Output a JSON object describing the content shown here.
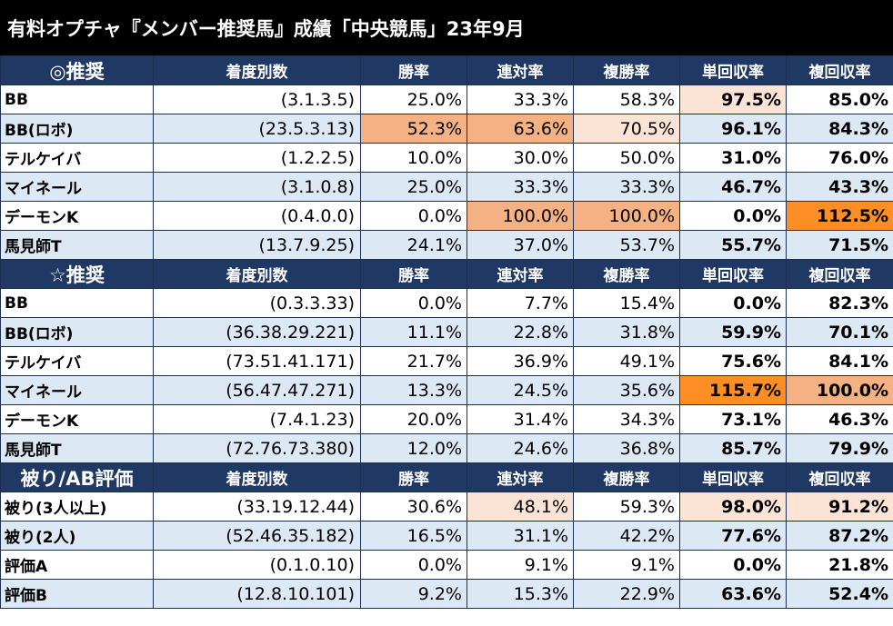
{
  "title": "有料オプチャ『メンバー推奨馬』成績「中央競馬」23年9月",
  "colors": {
    "header_bg": "#1f3964",
    "row_alt_bg": "#dde8f5",
    "highlight_medium": "#f4b183",
    "highlight_light": "#fbe4d6",
    "highlight_strong": "#ff8f24"
  },
  "columns": [
    "着度別数",
    "勝率",
    "連対率",
    "複勝率",
    "単回収率",
    "複回収率"
  ],
  "sections": [
    {
      "label": "◎推奨",
      "rows": [
        {
          "name": "BB",
          "record": "(3.1.3.5)",
          "values": [
            "25.0%",
            "33.3%",
            "58.3%",
            "97.5%",
            "85.0%"
          ],
          "highlights": [
            "",
            "",
            "",
            "light",
            ""
          ]
        },
        {
          "name": "BB(ロボ)",
          "record": "(23.5.3.13)",
          "values": [
            "52.3%",
            "63.6%",
            "70.5%",
            "96.1%",
            "84.3%"
          ],
          "highlights": [
            "medium",
            "medium",
            "light",
            "",
            ""
          ]
        },
        {
          "name": "テルケイバ",
          "record": "(1.2.2.5)",
          "values": [
            "10.0%",
            "30.0%",
            "50.0%",
            "31.0%",
            "76.0%"
          ],
          "highlights": [
            "",
            "",
            "",
            "",
            ""
          ]
        },
        {
          "name": "マイネール",
          "record": "(3.1.0.8)",
          "values": [
            "25.0%",
            "33.3%",
            "33.3%",
            "46.7%",
            "43.3%"
          ],
          "highlights": [
            "",
            "",
            "",
            "",
            ""
          ]
        },
        {
          "name": "デーモンK",
          "record": "(0.4.0.0)",
          "values": [
            "0.0%",
            "100.0%",
            "100.0%",
            "0.0%",
            "112.5%"
          ],
          "highlights": [
            "",
            "medium",
            "medium",
            "",
            "strong"
          ]
        },
        {
          "name": "馬見師T",
          "record": "(13.7.9.25)",
          "values": [
            "24.1%",
            "37.0%",
            "53.7%",
            "55.7%",
            "71.5%"
          ],
          "highlights": [
            "",
            "",
            "",
            "",
            ""
          ]
        }
      ]
    },
    {
      "label": "☆推奨",
      "rows": [
        {
          "name": "BB",
          "record": "(0.3.3.33)",
          "values": [
            "0.0%",
            "7.7%",
            "15.4%",
            "0.0%",
            "82.3%"
          ],
          "highlights": [
            "",
            "",
            "",
            "",
            ""
          ]
        },
        {
          "name": "BB(ロボ)",
          "record": "(36.38.29.221)",
          "values": [
            "11.1%",
            "22.8%",
            "31.8%",
            "59.9%",
            "70.1%"
          ],
          "highlights": [
            "",
            "",
            "",
            "",
            ""
          ]
        },
        {
          "name": "テルケイバ",
          "record": "(73.51.41.171)",
          "values": [
            "21.7%",
            "36.9%",
            "49.1%",
            "75.6%",
            "84.1%"
          ],
          "highlights": [
            "",
            "",
            "",
            "",
            ""
          ]
        },
        {
          "name": "マイネール",
          "record": "(56.47.47.271)",
          "values": [
            "13.3%",
            "24.5%",
            "35.6%",
            "115.7%",
            "100.0%"
          ],
          "highlights": [
            "",
            "",
            "",
            "strong",
            "medium"
          ]
        },
        {
          "name": "デーモンK",
          "record": "(7.4.1.23)",
          "values": [
            "20.0%",
            "31.4%",
            "34.3%",
            "73.1%",
            "46.3%"
          ],
          "highlights": [
            "",
            "",
            "",
            "",
            ""
          ]
        },
        {
          "name": "馬見師T",
          "record": "(72.76.73.380)",
          "values": [
            "12.0%",
            "24.6%",
            "36.8%",
            "85.7%",
            "79.9%"
          ],
          "highlights": [
            "",
            "",
            "",
            "",
            ""
          ]
        }
      ]
    },
    {
      "label": "被り/AB評価",
      "rows": [
        {
          "name": "被り(3人以上)",
          "record": "(33.19.12.44)",
          "values": [
            "30.6%",
            "48.1%",
            "59.3%",
            "98.0%",
            "91.2%"
          ],
          "highlights": [
            "",
            "light",
            "",
            "light",
            "light"
          ]
        },
        {
          "name": "被り(2人)",
          "record": "(52.46.35.182)",
          "values": [
            "16.5%",
            "31.1%",
            "42.2%",
            "77.6%",
            "87.2%"
          ],
          "highlights": [
            "",
            "",
            "",
            "",
            ""
          ]
        },
        {
          "name": "評価A",
          "record": "(0.1.0.10)",
          "values": [
            "0.0%",
            "9.1%",
            "9.1%",
            "0.0%",
            "21.8%"
          ],
          "highlights": [
            "",
            "",
            "",
            "",
            ""
          ]
        },
        {
          "name": "評価B",
          "record": "(12.8.10.101)",
          "values": [
            "9.2%",
            "15.3%",
            "22.9%",
            "63.6%",
            "52.4%"
          ],
          "highlights": [
            "",
            "",
            "",
            "",
            ""
          ]
        }
      ]
    }
  ]
}
